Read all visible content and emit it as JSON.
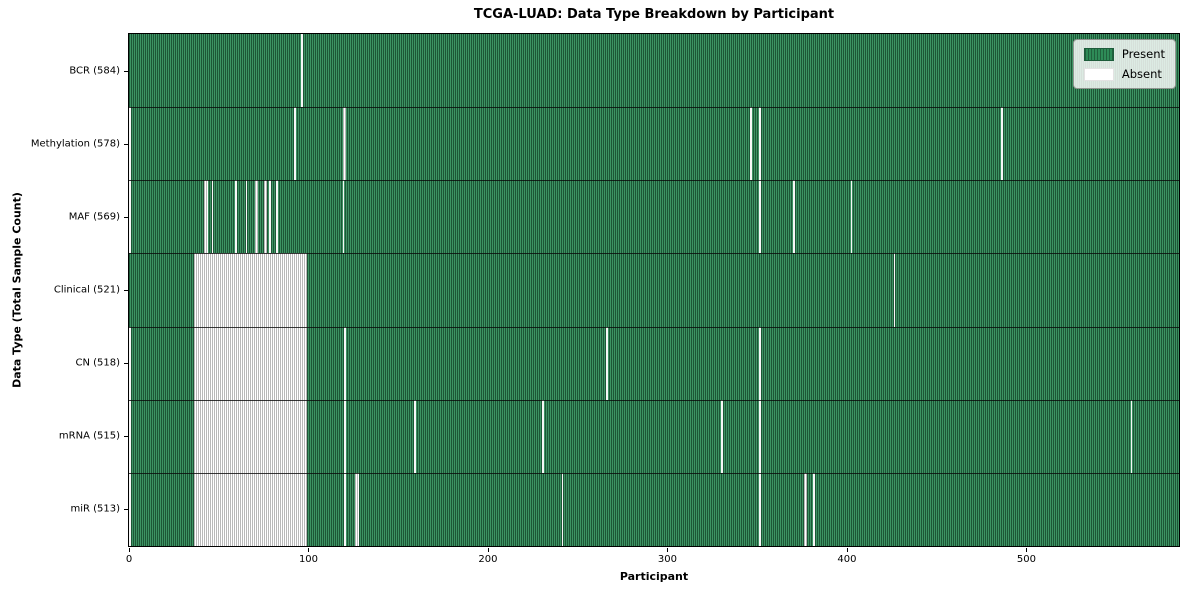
{
  "chart_data": {
    "type": "heatmap",
    "title": "TCGA-LUAD: Data Type Breakdown by Participant",
    "xlabel": "Participant",
    "ylabel": "Data Type (Total Sample Count)",
    "x_ticks": [
      0,
      100,
      200,
      300,
      400,
      500
    ],
    "n_participants": 585,
    "grid": false,
    "colors": {
      "present": "#2e8b57",
      "present_hatch_line": "#1d5c3b",
      "absent": "#ffffff",
      "absent_hatch_line": "#9c9c9c",
      "row_separator": "#1a1a1a",
      "plot_border": "#000000"
    },
    "legend": {
      "position": "upper right",
      "entries": [
        {
          "label": "Present",
          "color": "#2e8b57",
          "key": "present"
        },
        {
          "label": "Absent",
          "color": "#ffffff",
          "key": "absent"
        }
      ]
    },
    "rows": [
      {
        "label": "BCR (584)",
        "data_type": "BCR",
        "present_count": 584,
        "absent_ranges": [
          [
            96,
            96
          ]
        ]
      },
      {
        "label": "Methylation (578)",
        "data_type": "Methylation",
        "present_count": 578,
        "absent_ranges": [
          [
            0,
            0
          ],
          [
            92,
            92
          ],
          [
            119,
            120
          ],
          [
            346,
            346
          ],
          [
            351,
            351
          ],
          [
            486,
            486
          ]
        ]
      },
      {
        "label": "MAF (569)",
        "data_type": "MAF",
        "present_count": 569,
        "absent_ranges": [
          [
            0,
            0
          ],
          [
            42,
            43
          ],
          [
            46,
            46
          ],
          [
            59,
            59
          ],
          [
            65,
            65
          ],
          [
            70,
            71
          ],
          [
            75,
            76
          ],
          [
            78,
            78
          ],
          [
            82,
            82
          ],
          [
            119,
            119
          ],
          [
            351,
            351
          ],
          [
            370,
            370
          ],
          [
            402,
            402
          ]
        ]
      },
      {
        "label": "Clinical (521)",
        "data_type": "Clinical",
        "present_count": 521,
        "absent_ranges": [
          [
            36,
            98
          ],
          [
            426,
            426
          ]
        ]
      },
      {
        "label": "CN (518)",
        "data_type": "CN",
        "present_count": 518,
        "absent_ranges": [
          [
            0,
            0
          ],
          [
            36,
            98
          ],
          [
            120,
            120
          ],
          [
            266,
            266
          ],
          [
            351,
            351
          ]
        ]
      },
      {
        "label": "mRNA (515)",
        "data_type": "mRNA",
        "present_count": 515,
        "absent_ranges": [
          [
            0,
            0
          ],
          [
            36,
            98
          ],
          [
            120,
            120
          ],
          [
            159,
            159
          ],
          [
            230,
            230
          ],
          [
            330,
            330
          ],
          [
            351,
            351
          ],
          [
            558,
            558
          ]
        ]
      },
      {
        "label": "miR (513)",
        "data_type": "miR",
        "present_count": 513,
        "absent_ranges": [
          [
            0,
            0
          ],
          [
            36,
            98
          ],
          [
            120,
            120
          ],
          [
            126,
            127
          ],
          [
            241,
            241
          ],
          [
            351,
            351
          ],
          [
            376,
            377
          ],
          [
            381,
            381
          ]
        ]
      }
    ]
  }
}
